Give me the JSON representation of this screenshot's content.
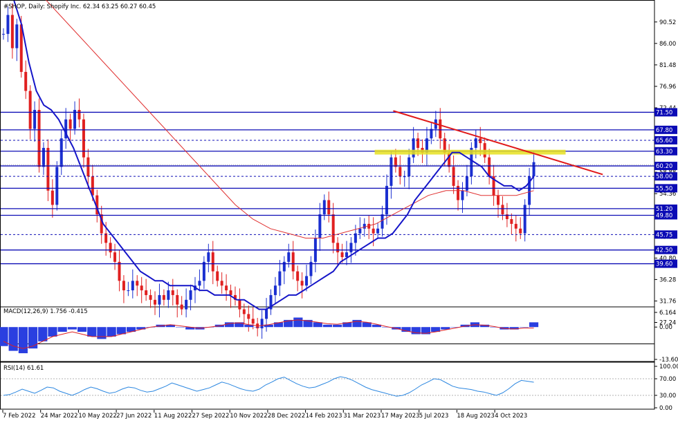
{
  "header": {
    "symbol_line": "#SHOP, Daily: Shopify Inc.",
    "ohlc": "62.34 63.25 60.27 60.45"
  },
  "macd_label": "MACD(12,26,9) 1.756 -0.415",
  "rsi_label": "RSI(14) 61.61",
  "colors": {
    "level_line": "#0b0bb5",
    "moving_avg_fast": "#1515c8",
    "moving_avg_slow": "#e03030",
    "trendline": "#e01818",
    "resistance_zone": "#e6e020",
    "bull_candle": "#1a2fd0",
    "bear_candle": "#e02020",
    "macd_hist": "#2a3fe0",
    "macd_signal": "#e02020",
    "rsi_line": "#2a86e0"
  },
  "chart_data": [
    {
      "type": "candlestick",
      "title": "#SHOP, Daily: Shopify Inc.",
      "ylim": [
        22.8,
        95
      ],
      "price_ticks": [
        "90.52",
        "86.00",
        "81.48",
        "76.96",
        "72.44",
        "67.92",
        "63.40",
        "58.88",
        "54.36",
        "49.84",
        "45.32",
        "40.80",
        "36.28",
        "31.76",
        "27.24"
      ],
      "price_tick_values": [
        90.52,
        86.0,
        81.48,
        76.96,
        72.44,
        67.92,
        63.4,
        58.88,
        54.36,
        49.84,
        45.32,
        40.8,
        36.28,
        31.76,
        27.24
      ],
      "x_labels": [
        "7 Feb 2022",
        "24 Mar 2022",
        "10 May 2022",
        "27 Jun 2022",
        "11 Aug 2022",
        "27 Sep 2022",
        "10 Nov 2022",
        "28 Dec 2022",
        "14 Feb 2023",
        "31 Mar 2023",
        "17 May 2023",
        "5 Jul 2023",
        "18 Aug 2023",
        "4 Oct 2023"
      ],
      "horizontal_levels": [
        {
          "label": "71.50",
          "value": 71.5,
          "style": "solid"
        },
        {
          "label": "67.80",
          "value": 67.8,
          "style": "solid"
        },
        {
          "label": "65.60",
          "value": 65.6,
          "style": "dotted"
        },
        {
          "label": "63.30",
          "value": 63.3,
          "style": "solid"
        },
        {
          "label": "60.20",
          "value": 60.2,
          "style": "solid"
        },
        {
          "label": "58.00",
          "value": 58.0,
          "style": "dotted"
        },
        {
          "label": "55.50",
          "value": 55.5,
          "style": "solid"
        },
        {
          "label": "51.20",
          "value": 51.2,
          "style": "solid"
        },
        {
          "label": "49.80",
          "value": 49.8,
          "style": "solid"
        },
        {
          "label": "45.75",
          "value": 45.75,
          "style": "dotted"
        },
        {
          "label": "42.50",
          "value": 42.5,
          "style": "solid"
        },
        {
          "label": "39.60",
          "value": 39.6,
          "style": "solid"
        }
      ],
      "current_price": 60.45,
      "trendline": {
        "start": {
          "date": "Jun 2023",
          "value": 71.8
        },
        "end": {
          "date": "Nov 2023",
          "value": 58.4
        }
      },
      "resistance_zone": [
        62.6,
        63.6
      ],
      "close_series": [
        88,
        92,
        85,
        90,
        80,
        76,
        68,
        72,
        60,
        64,
        55,
        52,
        60,
        66,
        70,
        68,
        72,
        70,
        62,
        58,
        54,
        50,
        46,
        44,
        42,
        40,
        36,
        34,
        34,
        36,
        35,
        34,
        33,
        32,
        31,
        33,
        32,
        34,
        33,
        31,
        30,
        32,
        34,
        35,
        36,
        40,
        42,
        38,
        36,
        35,
        34,
        33,
        32,
        30,
        29,
        28,
        27,
        26,
        28,
        30,
        33,
        35,
        38,
        40,
        42,
        38,
        36,
        35,
        37,
        40,
        45,
        50,
        53,
        50,
        44,
        42,
        41,
        42,
        44,
        46,
        47,
        48,
        47,
        46,
        47,
        50,
        56,
        62,
        60,
        58,
        58,
        62,
        66,
        64,
        63,
        66,
        68,
        70,
        66,
        63,
        60,
        56,
        53,
        55,
        58,
        64,
        66,
        65,
        62,
        58,
        54,
        52,
        50,
        49,
        48,
        47,
        46,
        52,
        58,
        61
      ],
      "fast_ma_series": [
        95,
        90,
        82,
        76,
        73,
        72,
        70,
        67,
        64,
        60,
        56,
        52,
        48,
        46,
        44,
        42,
        40,
        38,
        37,
        36,
        36,
        35,
        35,
        35,
        35,
        34,
        34,
        33,
        33,
        33,
        32,
        32,
        31,
        30,
        30,
        31,
        32,
        33,
        33,
        34,
        35,
        36,
        37,
        38,
        40,
        41,
        42,
        43,
        44,
        45,
        45,
        46,
        48,
        50,
        53,
        55,
        57,
        59,
        61,
        63,
        63,
        62,
        61,
        60,
        58,
        57,
        56,
        56,
        55,
        56,
        58
      ],
      "slow_ma_series": [
        100,
        96,
        92,
        88,
        84,
        80,
        76,
        72,
        68,
        64,
        60,
        56,
        52,
        49,
        47,
        46,
        45,
        45,
        46,
        47,
        48,
        50,
        52,
        54,
        55,
        55,
        54,
        54,
        54,
        55
      ]
    },
    {
      "type": "bar",
      "title": "MACD(12,26,9) 1.756 -0.415",
      "ylim": [
        -13.601,
        6.164
      ],
      "y_ticks": [
        "6.164",
        "0.00",
        "-13.601"
      ],
      "y_tick_values": [
        6.164,
        0.0,
        -13.601
      ],
      "histogram": [
        -8,
        -10,
        -11,
        -9,
        -6,
        -4,
        -2,
        -1,
        -2,
        -4,
        -5,
        -4,
        -3,
        -2,
        -1,
        0,
        1,
        1,
        0,
        -1,
        -1,
        0,
        1,
        2,
        2,
        1,
        0,
        1,
        2,
        3,
        4,
        3,
        2,
        1,
        1,
        2,
        3,
        2,
        1,
        0,
        -1,
        -2,
        -3,
        -3,
        -2,
        -1,
        0,
        1,
        2,
        1,
        0,
        -1,
        -1,
        0,
        2
      ],
      "signal": [
        -6,
        -8,
        -9,
        -8,
        -6,
        -4,
        -3,
        -2,
        -3,
        -4,
        -4,
        -4,
        -3,
        -2,
        -1,
        0,
        0.5,
        1,
        0.5,
        0,
        -0.5,
        0,
        0.5,
        1.5,
        1.8,
        1,
        0.5,
        1,
        1.8,
        2.6,
        3,
        2.6,
        2,
        1.4,
        1.2,
        1.8,
        2.4,
        2,
        1.2,
        0.2,
        -0.6,
        -1.6,
        -2.4,
        -2.6,
        -2,
        -1.2,
        -0.4,
        0.4,
        1,
        0.8,
        0.2,
        -0.6,
        -0.8,
        -0.4,
        -0.4
      ]
    },
    {
      "type": "line",
      "title": "RSI(14) 61.61",
      "ylim": [
        0,
        100
      ],
      "y_ticks": [
        "100.00",
        "70.00",
        "30.00",
        "0.00"
      ],
      "y_tick_values": [
        100,
        70,
        30,
        0
      ],
      "values": [
        30,
        32,
        38,
        45,
        40,
        35,
        42,
        50,
        48,
        40,
        35,
        30,
        36,
        44,
        50,
        46,
        40,
        35,
        38,
        45,
        50,
        48,
        42,
        38,
        40,
        46,
        52,
        60,
        55,
        50,
        45,
        40,
        44,
        48,
        55,
        62,
        58,
        52,
        46,
        42,
        40,
        45,
        55,
        62,
        70,
        74,
        66,
        58,
        52,
        48,
        50,
        56,
        62,
        70,
        75,
        72,
        66,
        58,
        50,
        44,
        40,
        36,
        32,
        28,
        30,
        36,
        45,
        55,
        62,
        70,
        68,
        60,
        52,
        48,
        46,
        44,
        40,
        38,
        34,
        30,
        36,
        46,
        58,
        66,
        64,
        61.61
      ]
    }
  ]
}
